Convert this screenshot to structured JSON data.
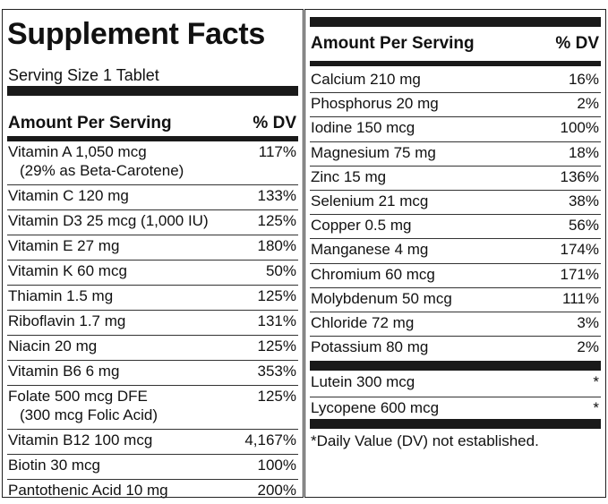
{
  "left": {
    "title": "Supplement Facts",
    "serving_size": "Serving Size 1 Tablet",
    "header": {
      "amount": "Amount Per Serving",
      "dv": "% DV"
    },
    "rows": [
      {
        "name": "Vitamin A 1,050 mcg",
        "sub": "(29% as Beta-Carotene)",
        "dv": "117%"
      },
      {
        "name": "Vitamin C 120 mg",
        "dv": "133%"
      },
      {
        "name": "Vitamin D3 25 mcg (1,000 IU)",
        "dv": "125%"
      },
      {
        "name": "Vitamin E 27 mg",
        "dv": "180%"
      },
      {
        "name": "Vitamin K 60 mcg",
        "dv": "50%"
      },
      {
        "name": "Thiamin 1.5 mg",
        "dv": "125%"
      },
      {
        "name": "Riboflavin 1.7 mg",
        "dv": "131%"
      },
      {
        "name": "Niacin 20 mg",
        "dv": "125%"
      },
      {
        "name": "Vitamin B6 6 mg",
        "dv": "353%"
      },
      {
        "name": "Folate 500 mcg DFE",
        "sub": "(300 mcg Folic Acid)",
        "dv": "125%"
      },
      {
        "name": "Vitamin B12 100 mcg",
        "dv": "4,167%"
      },
      {
        "name": "Biotin 30 mcg",
        "dv": "100%"
      },
      {
        "name": "Pantothenic Acid 10 mg",
        "dv": "200%"
      }
    ]
  },
  "right": {
    "header": {
      "amount": "Amount Per Serving",
      "dv": "% DV"
    },
    "rows": [
      {
        "name": "Calcium 210 mg",
        "dv": "16%"
      },
      {
        "name": "Phosphorus 20 mg",
        "dv": "2%"
      },
      {
        "name": "Iodine 150 mcg",
        "dv": "100%"
      },
      {
        "name": "Magnesium 75 mg",
        "dv": "18%"
      },
      {
        "name": "Zinc 15 mg",
        "dv": "136%"
      },
      {
        "name": "Selenium 21 mcg",
        "dv": "38%"
      },
      {
        "name": "Copper 0.5 mg",
        "dv": "56%"
      },
      {
        "name": "Manganese 4 mg",
        "dv": "174%"
      },
      {
        "name": "Chromium 60 mcg",
        "dv": "171%"
      },
      {
        "name": "Molybdenum 50 mcg",
        "dv": "111%"
      },
      {
        "name": "Chloride 72 mg",
        "dv": "3%"
      },
      {
        "name": "Potassium 80 mg",
        "dv": "2%"
      }
    ],
    "extra_rows": [
      {
        "name": "Lutein 300 mcg",
        "dv": "*"
      },
      {
        "name": "Lycopene 600 mcg",
        "dv": "*"
      }
    ],
    "footnote": "*Daily Value (DV) not established."
  }
}
